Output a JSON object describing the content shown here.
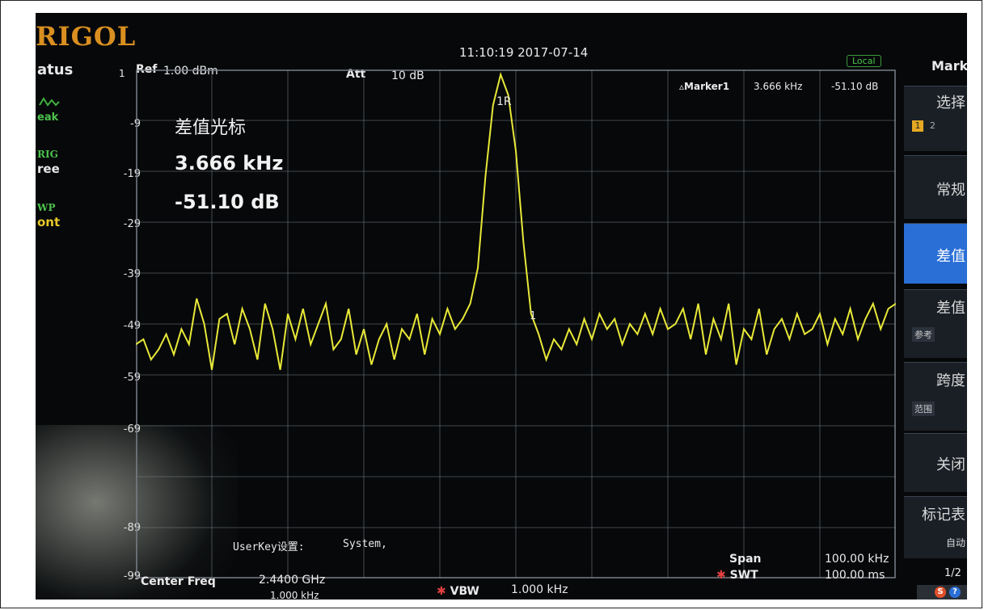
{
  "brand": {
    "logo": "RIGOL"
  },
  "status": {
    "title": "atus",
    "detector_icon": "peak-detector-icon",
    "detector": "eak",
    "trig_label": "RIG",
    "trig_value": "ree",
    "swp_label": "WP",
    "swp_value": "ont"
  },
  "header": {
    "ref_label": "Ref",
    "ref_value": "1.00 dBm",
    "att_label": "Att",
    "att_value": "10 dB",
    "datetime": "11:10:19 2017-07-14",
    "local_badge": "Local",
    "marker_label": "Marker1",
    "marker_freq": "3.666 kHz",
    "marker_value": "-51.10 dB"
  },
  "y_axis": {
    "top_marker": "1",
    "ticks": [
      "-9",
      "-19",
      "-29",
      "-39",
      "-49",
      "-59",
      "-69",
      "-89",
      "-99"
    ]
  },
  "annotation": {
    "title": "差值光标",
    "freq": "3.666 kHz",
    "value": "-51.10 dB"
  },
  "markers": {
    "ref_marker": "1R",
    "delta_marker": "1"
  },
  "userkey": {
    "label": "UserKey设置:",
    "value": "System,"
  },
  "footer": {
    "center_label": "Center Freq",
    "center_value": "2.4400 GHz",
    "center_sub": "1.000 kHz",
    "vbw_label": "VBW",
    "vbw_value": "1.000 kHz",
    "span_label": "Span",
    "span_value": "100.00 kHz",
    "swt_label": "SWT",
    "swt_value": "100.00 ms"
  },
  "right_menu": {
    "title": "Mark",
    "select_label": "选择",
    "select_items": [
      "1",
      "2"
    ],
    "normal": "常规",
    "delta": "差值",
    "delta_pair": "差值",
    "delta_pair_sub": "参考",
    "span_pair": "跨度",
    "span_pair_sub": "范围",
    "off": "关闭",
    "table": "标记表",
    "table_sub": "自动",
    "page": "1/2"
  },
  "colors": {
    "trace": "#e8e838",
    "grid": "#7a8088",
    "background": "#06080a",
    "active_menu": "#2a6fd6"
  },
  "chart_data": {
    "type": "line",
    "title": "",
    "xlabel": "",
    "ylabel": "",
    "ylim": [
      -99,
      1
    ],
    "x_range_khz": [
      -50,
      50
    ],
    "trace_points": [
      [
        -50,
        -53
      ],
      [
        -49,
        -52
      ],
      [
        -48,
        -56
      ],
      [
        -47,
        -54
      ],
      [
        -46,
        -51
      ],
      [
        -45,
        -55
      ],
      [
        -44,
        -50
      ],
      [
        -43,
        -53
      ],
      [
        -42,
        -44
      ],
      [
        -41,
        -49
      ],
      [
        -40,
        -58
      ],
      [
        -39,
        -48
      ],
      [
        -38,
        -47
      ],
      [
        -37,
        -53
      ],
      [
        -36,
        -46
      ],
      [
        -35,
        -50
      ],
      [
        -34,
        -56
      ],
      [
        -33,
        -45
      ],
      [
        -32,
        -50
      ],
      [
        -31,
        -58
      ],
      [
        -30,
        -47
      ],
      [
        -29,
        -52
      ],
      [
        -28,
        -46
      ],
      [
        -27,
        -53
      ],
      [
        -26,
        -49
      ],
      [
        -25,
        -45
      ],
      [
        -24,
        -54
      ],
      [
        -23,
        -52
      ],
      [
        -22,
        -46
      ],
      [
        -21,
        -55
      ],
      [
        -20,
        -50
      ],
      [
        -19,
        -57
      ],
      [
        -18,
        -52
      ],
      [
        -17,
        -49
      ],
      [
        -16,
        -56
      ],
      [
        -15,
        -50
      ],
      [
        -14,
        -52
      ],
      [
        -13,
        -47
      ],
      [
        -12,
        -55
      ],
      [
        -11,
        -48
      ],
      [
        -10,
        -51
      ],
      [
        -9,
        -46
      ],
      [
        -8,
        -50
      ],
      [
        -7,
        -48
      ],
      [
        -6,
        -45
      ],
      [
        -5,
        -38
      ],
      [
        -4,
        -20
      ],
      [
        -3,
        -6
      ],
      [
        -2,
        0
      ],
      [
        -1,
        -4
      ],
      [
        0,
        -15
      ],
      [
        1,
        -33
      ],
      [
        2,
        -47
      ],
      [
        3,
        -51
      ],
      [
        4,
        -56
      ],
      [
        5,
        -52
      ],
      [
        6,
        -54
      ],
      [
        7,
        -50
      ],
      [
        8,
        -53
      ],
      [
        9,
        -48
      ],
      [
        10,
        -52
      ],
      [
        11,
        -47
      ],
      [
        12,
        -50
      ],
      [
        13,
        -48
      ],
      [
        14,
        -53
      ],
      [
        15,
        -49
      ],
      [
        16,
        -51
      ],
      [
        17,
        -47
      ],
      [
        18,
        -51
      ],
      [
        19,
        -46
      ],
      [
        20,
        -50
      ],
      [
        21,
        -49
      ],
      [
        22,
        -46
      ],
      [
        23,
        -52
      ],
      [
        24,
        -45
      ],
      [
        25,
        -55
      ],
      [
        26,
        -48
      ],
      [
        27,
        -52
      ],
      [
        28,
        -45
      ],
      [
        29,
        -57
      ],
      [
        30,
        -50
      ],
      [
        31,
        -52
      ],
      [
        32,
        -46
      ],
      [
        33,
        -55
      ],
      [
        34,
        -50
      ],
      [
        35,
        -48
      ],
      [
        36,
        -52
      ],
      [
        37,
        -47
      ],
      [
        38,
        -51
      ],
      [
        39,
        -50
      ],
      [
        40,
        -47
      ],
      [
        41,
        -53
      ],
      [
        42,
        -48
      ],
      [
        43,
        -51
      ],
      [
        44,
        -46
      ],
      [
        45,
        -52
      ],
      [
        46,
        -48
      ],
      [
        47,
        -45
      ],
      [
        48,
        -50
      ],
      [
        49,
        -46
      ],
      [
        50,
        -45
      ]
    ]
  }
}
